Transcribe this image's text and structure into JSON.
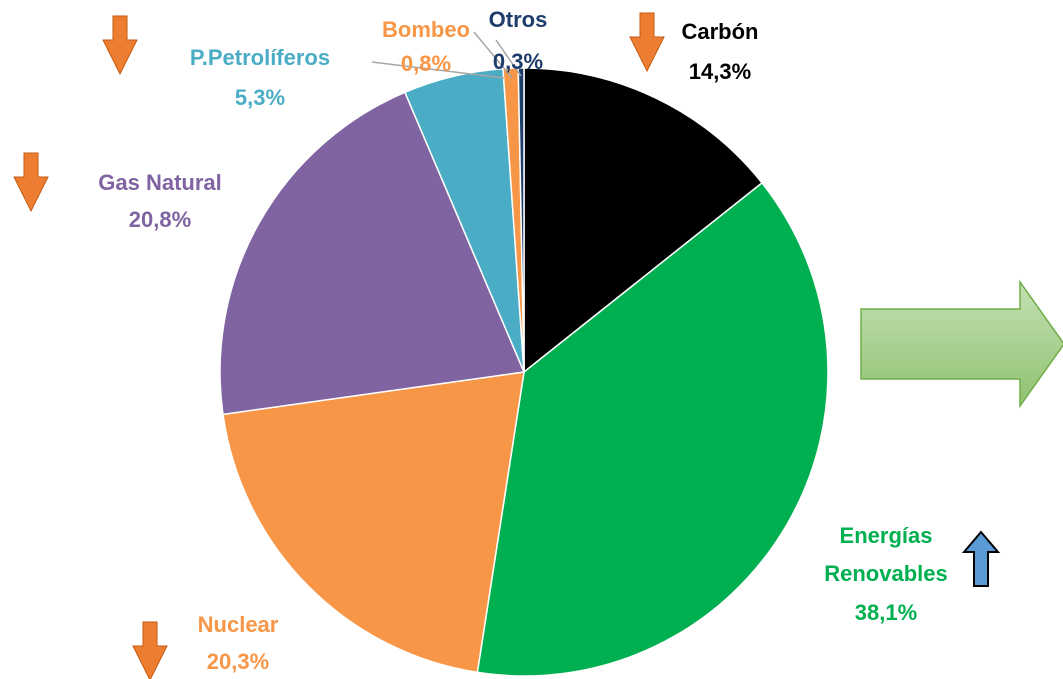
{
  "chart_data": {
    "type": "pie",
    "categories": [
      "Carbón",
      "Energías Renovables",
      "Nuclear",
      "Gas Natural",
      "P.Petrolíferos",
      "Bombeo",
      "Otros"
    ],
    "values": [
      14.3,
      38.1,
      20.3,
      20.8,
      5.3,
      0.8,
      0.3
    ],
    "value_labels": [
      "14,3%",
      "38,1%",
      "20,3%",
      "20,8%",
      "5,3%",
      "0,8%",
      "0,3%"
    ],
    "colors": [
      "#000000",
      "#00b050",
      "#f79646",
      "#8064a2",
      "#4bacc6",
      "#f79646",
      "#1f3d6b"
    ],
    "label_colors": [
      "#000000",
      "#00b050",
      "#f79646",
      "#8064a2",
      "#4bacc6",
      "#f79646",
      "#1f3d6b"
    ]
  }
}
